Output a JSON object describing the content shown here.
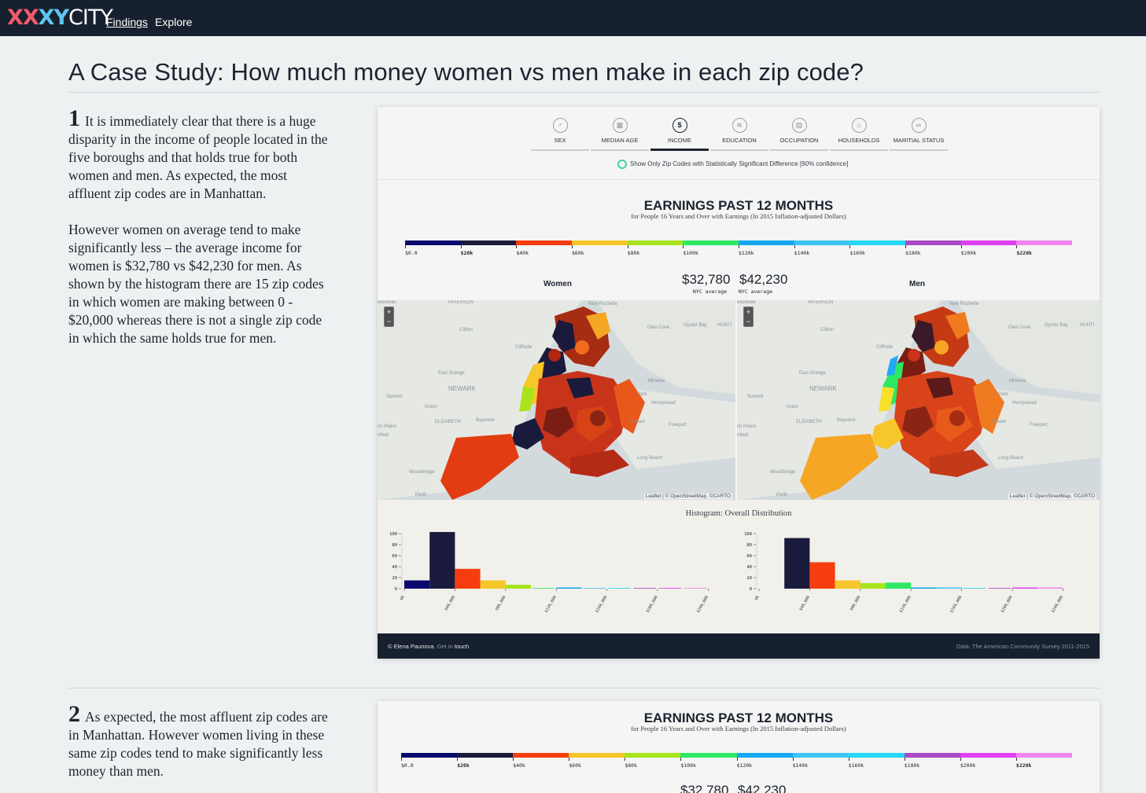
{
  "nav": {
    "logo_part1": "XX",
    "logo_part2": "XY",
    "logo_part3": "CITY",
    "links": [
      "Findings",
      "Explore"
    ]
  },
  "page_title": "A Case Study: How much money women vs men make in each zip code?",
  "sections": [
    {
      "number": "1",
      "paragraphs": [
        "It is immediately clear that there is a huge disparity in the income of people located in the five boroughs and that holds true for both women and men. As expected, the most affluent zip codes are in Manhattan.",
        "However women on average tend to make significantly less – the average income for women is $32,780 vs $42,230 for men. As shown by the histogram there are 15 zip codes in which women are making between 0 - $20,000 whereas there is not a single zip code in which the same holds true for men."
      ]
    },
    {
      "number": "2",
      "paragraphs": [
        "As expected, the most affluent zip codes are in Manhattan. However women living in these same zip codes tend to make significantly less money than men."
      ]
    }
  ],
  "viz": {
    "tabs": [
      {
        "label": "SEX",
        "icon": "sex-icon",
        "glyph": "♂"
      },
      {
        "label": "MEDIAN AGE",
        "icon": "calendar-icon",
        "glyph": "▦"
      },
      {
        "label": "INCOME",
        "icon": "dollar-icon",
        "glyph": "$",
        "active": true
      },
      {
        "label": "EDUCATION",
        "icon": "education-icon",
        "glyph": "≋"
      },
      {
        "label": "OCCUPATION",
        "icon": "briefcase-icon",
        "glyph": "▤"
      },
      {
        "label": "HOUSEHOLDS",
        "icon": "household-icon",
        "glyph": "⌂"
      },
      {
        "label": "MARITIAL STATUS",
        "icon": "rings-icon",
        "glyph": "∞"
      }
    ],
    "filter_label": "Show Only Zip Codes with Statistically Significant Difference [90% confidence]",
    "title": "EARNINGS PAST 12 MONTHS",
    "subtitle": "for People 16 Years and Over with Earnings (In 2015 Inflation-adjusted Dollars)",
    "legend_labels": [
      "$0.0",
      "$20k",
      "$40k",
      "$60k",
      "$80k",
      "$100k",
      "$120k",
      "$140k",
      "$160k",
      "$180k",
      "$200k",
      "$220k"
    ],
    "legend_bold": [
      "$20k",
      "$220k"
    ],
    "legend_colors": [
      "#0a0a6e",
      "#1a1a3c",
      "#f53d10",
      "#f7c62a",
      "#a8e31b",
      "#2de864",
      "#14a8f0",
      "#3ec3f4",
      "#25d8f4",
      "#a94bc4",
      "#e040f0",
      "#ef86ef"
    ],
    "women": {
      "label": "Women",
      "average": "$32,780",
      "average_label": "NYC average"
    },
    "men": {
      "label": "Men",
      "average": "$42,230",
      "average_label": "NYC average"
    },
    "map_attribution": "Leaflet | © OpenStreetMap, ©CARTO",
    "map_places": [
      "PATERSON",
      "Montville",
      "New Rochelle",
      "Glen Cove",
      "Oyster Bay",
      "HUNTI",
      "Clifton",
      "Cliffside",
      "East Orange",
      "NEWARK",
      "Summit",
      "Union",
      "ELIZABETH",
      "Bayonne",
      "Mineola",
      "Park",
      "Hempstead",
      "Stream",
      "Freeport",
      "Long Beach",
      "Woodbridge",
      "ch Plains",
      "nfield",
      "Perth"
    ],
    "zoom_in": "+",
    "zoom_out": "−",
    "histogram_title": "Histogram: Overall Distribution",
    "footer_author": "© Elena Paunova",
    "footer_contact_prefix": "Get in",
    "footer_contact_link": "touch",
    "footer_source": "Data: The American Community Survey 2011-2015"
  },
  "chart_data": [
    {
      "type": "bar",
      "title": "Histogram: Overall Distribution",
      "series_name": "Women",
      "categories": [
        "$0",
        "$20,000",
        "$40,000",
        "$60,000",
        "$80,000",
        "$100,000",
        "$120,000",
        "$140,000",
        "$160,000",
        "$180,000",
        "$200,000",
        "$220,000"
      ],
      "tick_labels": [
        "$0",
        "$40,000",
        "$80,000",
        "$120,000",
        "$160,000",
        "$200,000",
        "$240,000"
      ],
      "values": [
        15,
        103,
        36,
        15,
        7,
        0,
        1,
        0,
        0,
        0,
        0,
        0
      ],
      "ylim": [
        0,
        100
      ],
      "yticks": [
        0,
        20,
        40,
        60,
        80,
        100
      ],
      "colors": [
        "#0a0a6e",
        "#1a1a3c",
        "#f53d10",
        "#f7c62a",
        "#a8e31b",
        "#2de864",
        "#14a8f0",
        "#3ec3f4",
        "#25d8f4",
        "#a94bc4",
        "#e040f0",
        "#ef86ef"
      ]
    },
    {
      "type": "bar",
      "title": "Histogram: Overall Distribution",
      "series_name": "Men",
      "categories": [
        "$0",
        "$20,000",
        "$40,000",
        "$60,000",
        "$80,000",
        "$100,000",
        "$120,000",
        "$140,000",
        "$160,000",
        "$180,000",
        "$200,000",
        "$220,000"
      ],
      "tick_labels": [
        "$0",
        "$40,000",
        "$80,000",
        "$120,000",
        "$160,000",
        "$200,000",
        "$240,000"
      ],
      "values": [
        0,
        92,
        48,
        15,
        10,
        11,
        1,
        1,
        0,
        0,
        1,
        1
      ],
      "ylim": [
        0,
        100
      ],
      "yticks": [
        0,
        20,
        40,
        60,
        80,
        100
      ],
      "colors": [
        "#0a0a6e",
        "#1a1a3c",
        "#f53d10",
        "#f7c62a",
        "#a8e31b",
        "#2de864",
        "#14a8f0",
        "#3ec3f4",
        "#25d8f4",
        "#a94bc4",
        "#e040f0",
        "#ef86ef"
      ]
    }
  ]
}
